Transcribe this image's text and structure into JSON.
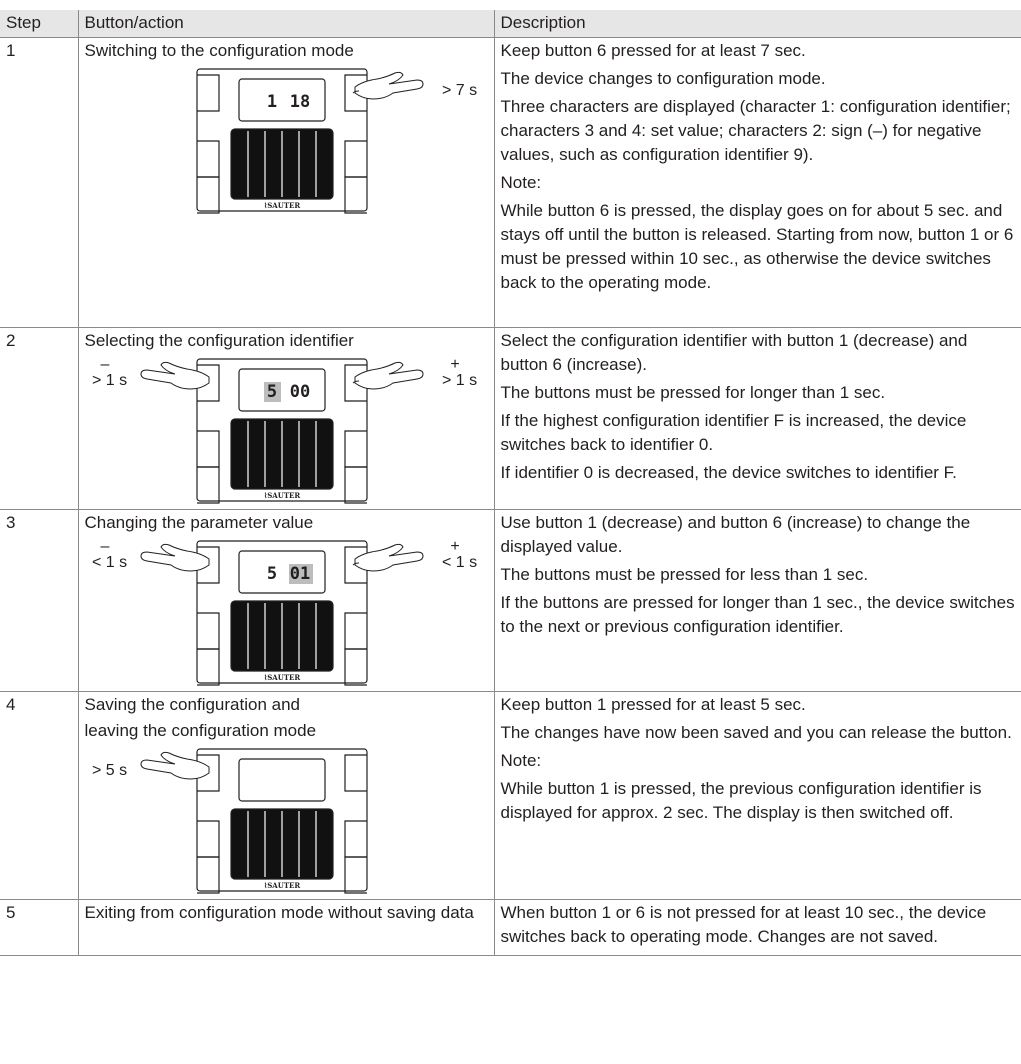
{
  "table": {
    "headers": {
      "step": "Step",
      "action": "Button/action",
      "description": "Description"
    },
    "rows": [
      {
        "step": "1",
        "action_lines": [
          "Switching to the configuration mode"
        ],
        "description_lines": [
          "Keep button 6 pressed for at least 7 sec.",
          "The device changes to configuration mode.",
          "Three characters are displayed (character 1: configuration identifier; characters 3 and 4: set value; characters 2: sign (–) for negative values, such as configuration identifier 9).",
          "Note:",
          "While button 6 is pressed, the display goes on for about 5 sec. and stays off until the button is released. Starting from now, button 1 or 6 must be pressed within 10 sec., as otherwise the device switches back to the operating mode."
        ],
        "figure": {
          "lcd": "1 18",
          "lcd_highlighted": "",
          "right_label": "> 7 s",
          "right_sign": "",
          "left_label": "",
          "left_sign": "",
          "logo": "SAUTER",
          "show_logo": true
        }
      },
      {
        "step": "2",
        "action_lines": [
          "Selecting the configuration identifier"
        ],
        "description_lines": [
          "Select the configuration identifier with button 1 (decrease) and button 6 (increase).",
          "The buttons must be pressed for longer than 1 sec.",
          "If the highest configuration identifier F is increased, the device switches back to identifier 0.",
          "If identifier 0 is decreased, the device switches to identifier F."
        ],
        "figure": {
          "lcd": "5 00",
          "lcd_highlighted": "first",
          "right_label": "> 1 s",
          "right_sign": "+",
          "left_label": "> 1 s",
          "left_sign": "–",
          "logo": "SAUTER",
          "show_logo": true
        }
      },
      {
        "step": "3",
        "action_lines": [
          "Changing the parameter value"
        ],
        "description_lines": [
          "Use button 1 (decrease) and button 6 (increase) to change the displayed value.",
          "The buttons must be pressed for less than 1 sec.",
          "If the buttons are pressed for longer than 1 sec., the device switches to the next or previous configuration identifier."
        ],
        "figure": {
          "lcd": "5 01",
          "lcd_highlighted": "last",
          "right_label": "< 1 s",
          "right_sign": "+",
          "left_label": "< 1 s",
          "left_sign": "–",
          "logo": "SAUTER",
          "show_logo": true
        }
      },
      {
        "step": "4",
        "action_lines": [
          "Saving the configuration and",
          "leaving the configuration mode"
        ],
        "description_lines": [
          "Keep button 1 pressed for at least 5 sec.",
          "The changes have now been saved and you can release the button.",
          "Note:",
          "While button 1 is pressed, the previous configuration identifier is displayed for approx. 2 sec. The display is then switched off."
        ],
        "figure": {
          "lcd": "",
          "lcd_highlighted": "",
          "right_label": "",
          "right_sign": "",
          "left_label": "> 5 s",
          "left_sign": "",
          "logo": "SAUTER",
          "show_logo": true
        }
      },
      {
        "step": "5",
        "action_lines": [
          "Exiting from configuration mode without saving data"
        ],
        "description_lines": [
          "When button 1 or 6 is not pressed for at least 10 sec., the device switches back to operating mode. Changes are not saved."
        ],
        "figure": null
      }
    ]
  }
}
